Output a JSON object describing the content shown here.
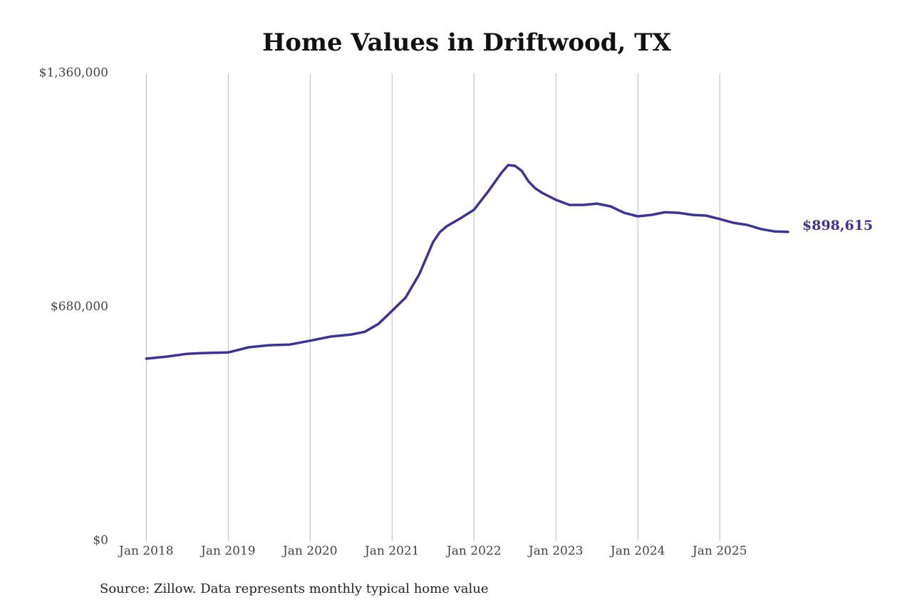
{
  "chart_data": {
    "type": "line",
    "title": "Home Values in Driftwood, TX",
    "source": "Source: Zillow. Data represents monthly typical home value",
    "x": [
      "2018-01",
      "2018-04",
      "2018-07",
      "2018-09",
      "2019-01",
      "2019-04",
      "2019-07",
      "2019-10",
      "2020-01",
      "2020-04",
      "2020-07",
      "2020-09",
      "2020-11",
      "2021-01",
      "2021-03",
      "2021-05",
      "2021-07",
      "2021-08",
      "2021-09",
      "2021-11",
      "2022-01",
      "2022-03",
      "2022-05",
      "2022-06",
      "2022-07",
      "2022-08",
      "2022-09",
      "2022-10",
      "2022-11",
      "2023-01",
      "2023-03",
      "2023-05",
      "2023-07",
      "2023-09",
      "2023-11",
      "2024-01",
      "2024-03",
      "2024-05",
      "2024-07",
      "2024-09",
      "2024-11",
      "2025-01",
      "2025-03",
      "2025-05",
      "2025-07",
      "2025-09",
      "2025-11"
    ],
    "series": [
      {
        "name": "Typical home value",
        "color": "#3b3497",
        "values": [
          530000,
          536000,
          544000,
          546000,
          548000,
          563000,
          569000,
          571000,
          582000,
          594000,
          600000,
          608000,
          631000,
          669000,
          708000,
          776000,
          869000,
          898000,
          915000,
          938000,
          963000,
          1014000,
          1070000,
          1093000,
          1091000,
          1076000,
          1045000,
          1025000,
          1012000,
          992000,
          977000,
          977000,
          981000,
          973000,
          954000,
          944000,
          948000,
          956000,
          954000,
          948000,
          946000,
          936000,
          925000,
          919000,
          907000,
          900000,
          898615
        ],
        "value_labels": [
          null,
          null,
          null,
          null,
          null,
          null,
          null,
          null,
          null,
          null,
          null,
          null,
          null,
          null,
          null,
          null,
          null,
          null,
          null,
          null,
          null,
          null,
          null,
          null,
          null,
          null,
          null,
          null,
          null,
          null,
          null,
          null,
          null,
          null,
          null,
          null,
          null,
          null,
          null,
          null,
          null,
          null,
          null,
          null,
          null,
          null,
          "$898,615"
        ]
      }
    ],
    "xlim": [
      "2017-09",
      "2025-11"
    ],
    "xticks": [
      {
        "value": "2018-01",
        "label": "Jan 2018"
      },
      {
        "value": "2019-01",
        "label": "Jan 2019"
      },
      {
        "value": "2020-01",
        "label": "Jan 2020"
      },
      {
        "value": "2021-01",
        "label": "Jan 2021"
      },
      {
        "value": "2022-01",
        "label": "Jan 2022"
      },
      {
        "value": "2023-01",
        "label": "Jan 2023"
      },
      {
        "value": "2024-01",
        "label": "Jan 2024"
      },
      {
        "value": "2025-01",
        "label": "Jan 2025"
      }
    ],
    "ylim": [
      0,
      1360000
    ],
    "yticks": [
      {
        "value": 0,
        "label": "$0"
      },
      {
        "value": 680000,
        "label": "$680,000"
      },
      {
        "value": 1360000,
        "label": "$1,360,000"
      }
    ],
    "grid": "x"
  }
}
